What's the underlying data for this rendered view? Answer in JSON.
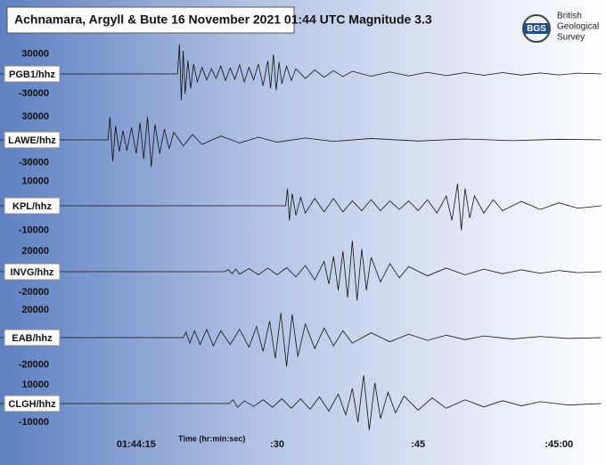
{
  "title": "Achnamara, Argyll & Bute  16 November 2021  01:44 UTC  Magnitude 3.3",
  "logo": {
    "abbr": "BGS",
    "lines": [
      "British",
      "Geological",
      "Survey"
    ]
  },
  "time_axis": {
    "label": "Time (hr:min:sec)",
    "xlim": [
      0.5,
      65
    ],
    "xticks": [
      {
        "value": 15,
        "label": "01:44:15"
      },
      {
        "value": 30,
        "label": ":30"
      },
      {
        "value": 45,
        "label": ":45"
      },
      {
        "value": 60,
        "label": ":45:00"
      }
    ]
  },
  "chart_data": [
    {
      "type": "line",
      "series_name": "PGB1/hhz",
      "color": "#111111",
      "ylim": [
        -50000,
        50000
      ],
      "yticks": [
        30000,
        -30000
      ],
      "x": [
        0.5,
        19.4,
        19.6,
        19.8,
        20.0,
        20.2,
        20.5,
        20.8,
        21.1,
        21.5,
        22,
        22.5,
        23,
        23.5,
        24,
        24.5,
        25,
        25.5,
        26,
        26.5,
        27,
        27.5,
        28,
        28.5,
        29,
        29.3,
        29.6,
        29.9,
        30.2,
        30.5,
        31,
        31.5,
        32,
        33,
        34,
        35,
        36,
        37,
        38,
        40,
        42,
        44,
        46,
        48,
        50,
        52,
        54,
        56,
        58,
        60,
        62,
        64.5
      ],
      "values": [
        0,
        0,
        45000,
        -40000,
        35000,
        -30000,
        20000,
        -22000,
        15000,
        -12000,
        10000,
        -9000,
        8000,
        -7000,
        12000,
        -10000,
        9000,
        -8000,
        14000,
        -12000,
        10000,
        -9000,
        15000,
        -18000,
        20000,
        -22000,
        30000,
        -25000,
        18000,
        -15000,
        12000,
        -10000,
        8000,
        -7000,
        6000,
        -5000,
        5000,
        -4000,
        4000,
        -3500,
        3000,
        -3000,
        2500,
        -2500,
        2000,
        -2000,
        2000,
        -1800,
        1500,
        -1500,
        1200,
        0
      ]
    },
    {
      "type": "line",
      "series_name": "LAWE/hhz",
      "color": "#111111",
      "ylim": [
        -43000,
        43000
      ],
      "yticks": [
        30000,
        -30000
      ],
      "x": [
        0.5,
        12.0,
        12.2,
        12.5,
        12.8,
        13.2,
        13.6,
        14,
        14.5,
        15,
        15.4,
        15.8,
        16.2,
        16.6,
        17,
        17.5,
        18,
        18.5,
        19,
        20,
        21,
        22,
        24,
        26,
        28,
        30,
        33,
        36,
        40,
        45,
        50,
        55,
        60,
        64.5
      ],
      "values": [
        0,
        0,
        30000,
        -28000,
        18000,
        -15000,
        12000,
        -14000,
        16000,
        -18000,
        22000,
        -25000,
        30000,
        -35000,
        20000,
        -18000,
        14000,
        -12000,
        10000,
        -8000,
        7000,
        -6000,
        5000,
        -4000,
        3500,
        -3000,
        2500,
        -2000,
        1800,
        -1500,
        1200,
        -1000,
        800,
        0
      ]
    },
    {
      "type": "line",
      "series_name": "KPL/hhz",
      "color": "#111111",
      "ylim": [
        -13500,
        13500
      ],
      "yticks": [
        10000,
        -10000
      ],
      "x": [
        0.5,
        30.9,
        31.1,
        31.3,
        31.6,
        32,
        32.5,
        33,
        34,
        35,
        36,
        37,
        38,
        39,
        40,
        41,
        42,
        43,
        44,
        45,
        46,
        47,
        48,
        48.6,
        49.2,
        49.6,
        50,
        50.5,
        51,
        52,
        53,
        54,
        56,
        58,
        60,
        62,
        64.5
      ],
      "values": [
        0,
        0,
        7000,
        -6000,
        5000,
        -4000,
        3500,
        -3000,
        3000,
        -2500,
        3000,
        -2500,
        2000,
        -2000,
        2500,
        -2000,
        2000,
        -1500,
        2000,
        -2000,
        2500,
        -3000,
        4000,
        -6000,
        9000,
        -10000,
        7000,
        -5000,
        4000,
        -3000,
        2500,
        -2000,
        1800,
        -1500,
        1200,
        -1000,
        0
      ]
    },
    {
      "type": "line",
      "series_name": "INVG/hhz",
      "color": "#111111",
      "ylim": [
        -32000,
        32000
      ],
      "yticks": [
        20000,
        -20000
      ],
      "x": [
        0.5,
        24.4,
        24.8,
        25.2,
        25.6,
        26,
        27,
        28,
        29,
        30,
        31,
        32,
        33,
        34,
        35,
        35.5,
        36,
        36.5,
        37,
        37.5,
        38,
        38.5,
        39,
        39.5,
        40,
        41,
        42,
        43,
        44,
        46,
        48,
        50,
        52,
        54,
        56,
        58,
        60,
        62,
        64.5
      ],
      "values": [
        0,
        0,
        2000,
        -2000,
        2500,
        -2500,
        3000,
        -3000,
        3500,
        -3000,
        4000,
        -5000,
        6000,
        -8000,
        10000,
        -12000,
        15000,
        -18000,
        20000,
        -25000,
        30000,
        -28000,
        22000,
        -18000,
        14000,
        -10000,
        8000,
        -6000,
        5000,
        -4000,
        3500,
        -3000,
        2500,
        -2000,
        1800,
        -1500,
        1200,
        -1000,
        0
      ]
    },
    {
      "type": "line",
      "series_name": "EAB/hhz",
      "color": "#111111",
      "ylim": [
        -24000,
        24000
      ],
      "yticks": [
        20000,
        -20000
      ],
      "x": [
        0.5,
        20.0,
        20.3,
        20.7,
        21.2,
        21.8,
        22.5,
        23.2,
        24,
        25,
        26,
        27,
        27.8,
        28.5,
        29.2,
        29.8,
        30.4,
        31,
        31.6,
        32.2,
        33,
        34,
        35,
        36,
        37,
        38,
        40,
        42,
        44,
        46,
        48,
        50,
        52,
        55,
        58,
        61,
        64.5
      ],
      "values": [
        0,
        0,
        4000,
        -4000,
        5000,
        -5000,
        6000,
        -6000,
        5000,
        -5000,
        6000,
        -7000,
        8000,
        -10000,
        12000,
        -15000,
        18000,
        -21000,
        17000,
        -14000,
        10000,
        -8000,
        7000,
        -6000,
        5000,
        -4000,
        3500,
        -3000,
        2500,
        -2000,
        1800,
        -1500,
        1200,
        -1000,
        800,
        -600,
        0
      ]
    },
    {
      "type": "line",
      "series_name": "CLGH/hhz",
      "color": "#111111",
      "ylim": [
        -17500,
        17500
      ],
      "yticks": [
        10000,
        -10000
      ],
      "x": [
        0.5,
        24.9,
        25.3,
        25.8,
        26.5,
        27.5,
        28.5,
        29.5,
        30.5,
        31.5,
        32.5,
        33.5,
        34.5,
        35.5,
        36.5,
        37.3,
        38,
        38.6,
        39.2,
        39.8,
        40.4,
        41,
        41.8,
        42.6,
        43.5,
        45,
        46.5,
        48,
        50,
        52,
        54,
        56,
        58,
        61,
        64.5
      ],
      "values": [
        0,
        0,
        2000,
        -2000,
        1500,
        -1500,
        2000,
        -2000,
        2500,
        -2500,
        2500,
        -3000,
        3500,
        -4000,
        5000,
        -6000,
        8000,
        -10000,
        15000,
        -14000,
        11000,
        -8000,
        6000,
        -5000,
        4000,
        -3500,
        3000,
        -2500,
        2000,
        -1800,
        1500,
        -1200,
        1000,
        -800,
        0
      ]
    }
  ]
}
